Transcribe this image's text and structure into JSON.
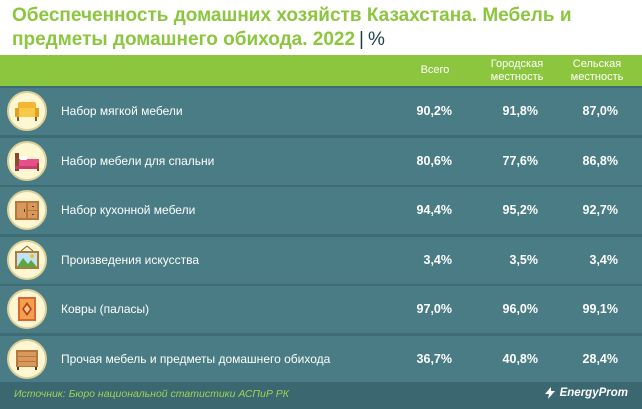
{
  "title": "Обеспеченность домашних хозяйств Казахстана. Мебель и предметы домашнего обихода. 2022",
  "unit": "%",
  "chart_data": {
    "type": "table",
    "columns": [
      "Всего",
      "Городская местность",
      "Сельская местность"
    ],
    "rows": [
      {
        "label": "Набор мягкой мебели",
        "icon": "sofa-icon",
        "values": [
          "90,2%",
          "91,8%",
          "87,0%"
        ]
      },
      {
        "label": "Набор мебели для спальни",
        "icon": "bed-icon",
        "values": [
          "80,6%",
          "77,6%",
          "86,8%"
        ]
      },
      {
        "label": "Набор кухонной мебели",
        "icon": "kitchen-cabinet-icon",
        "values": [
          "94,4%",
          "95,2%",
          "92,7%"
        ]
      },
      {
        "label": "Произведения искусства",
        "icon": "painting-icon",
        "values": [
          "3,4%",
          "3,5%",
          "3,4%"
        ]
      },
      {
        "label": "Ковры (паласы)",
        "icon": "carpet-icon",
        "values": [
          "97,0%",
          "96,0%",
          "99,1%"
        ]
      },
      {
        "label": "Прочая мебель и предметы домашнего обихода",
        "icon": "dresser-icon",
        "values": [
          "36,7%",
          "40,8%",
          "28,4%"
        ]
      }
    ]
  },
  "source": "Источник: Бюро национальной статистики АСПиР РК",
  "brand": "EnergyProm",
  "colors": {
    "accent": "#8cc63f",
    "row": "#497c84",
    "background": "#3e6c74"
  }
}
